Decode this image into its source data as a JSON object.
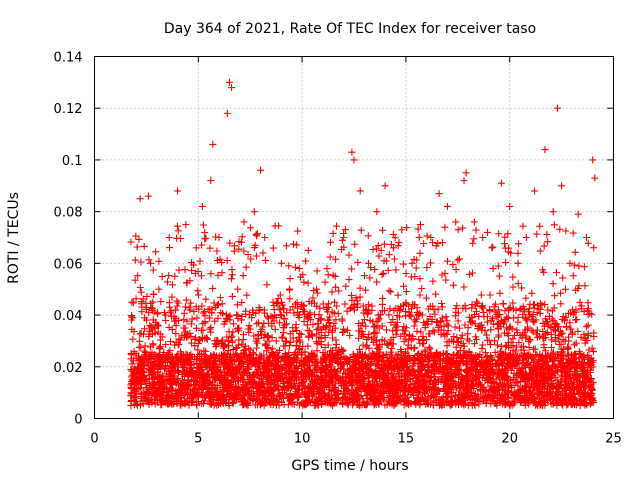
{
  "chart_data": {
    "type": "scatter",
    "title": "Day 364 of 2021, Rate Of TEC Index for receiver taso",
    "xlabel": "GPS time / hours",
    "ylabel": "ROTI / TECUs",
    "xlim": [
      0,
      25
    ],
    "ylim": [
      0,
      0.14
    ],
    "x_ticks": [
      0,
      5,
      10,
      15,
      20,
      25
    ],
    "y_ticks": [
      0,
      0.02,
      0.04,
      0.06,
      0.08,
      0.1,
      0.12,
      0.14
    ],
    "x_tick_labels": [
      "0",
      "5",
      "10",
      "15",
      "20",
      "25"
    ],
    "y_tick_labels": [
      "0",
      "0.02",
      "0.04",
      "0.06",
      "0.08",
      "0.1",
      "0.12",
      "0.14"
    ],
    "grid": true,
    "legend": "none",
    "marker": "plus",
    "color": "#ff0000",
    "series": [
      {
        "x": [
          1.8,
          2.2,
          2.6,
          2.7,
          3.1,
          3.6,
          4.0,
          4.4,
          4.9,
          5.2,
          5.6,
          5.7,
          6.0,
          6.4,
          6.5,
          6.6,
          6.9,
          7.2,
          7.7,
          8.0,
          8.2,
          8.6,
          9.0,
          9.4,
          9.8,
          10.3,
          10.7,
          11.2,
          11.6,
          12.0,
          12.4,
          12.5,
          12.8,
          13.2,
          13.6,
          14.0,
          14.4,
          14.8,
          15.3,
          15.7,
          16.2,
          16.6,
          17.0,
          17.4,
          17.8,
          17.9,
          18.3,
          18.7,
          19.2,
          19.6,
          20.0,
          20.4,
          20.8,
          21.2,
          21.7,
          22.1,
          22.3,
          22.5,
          22.9,
          23.3,
          23.7,
          24.0,
          24.1
        ],
        "y": [
          0.045,
          0.085,
          0.086,
          0.06,
          0.05,
          0.07,
          0.088,
          0.075,
          0.066,
          0.082,
          0.092,
          0.106,
          0.07,
          0.118,
          0.13,
          0.128,
          0.05,
          0.076,
          0.08,
          0.096,
          0.07,
          0.045,
          0.06,
          0.05,
          0.04,
          0.065,
          0.05,
          0.058,
          0.055,
          0.07,
          0.103,
          0.1,
          0.088,
          0.06,
          0.08,
          0.09,
          0.066,
          0.073,
          0.06,
          0.075,
          0.07,
          0.087,
          0.082,
          0.076,
          0.092,
          0.095,
          0.076,
          0.07,
          0.058,
          0.091,
          0.082,
          0.06,
          0.07,
          0.088,
          0.104,
          0.08,
          0.12,
          0.09,
          0.06,
          0.079,
          0.07,
          0.1,
          0.093
        ]
      }
    ]
  }
}
